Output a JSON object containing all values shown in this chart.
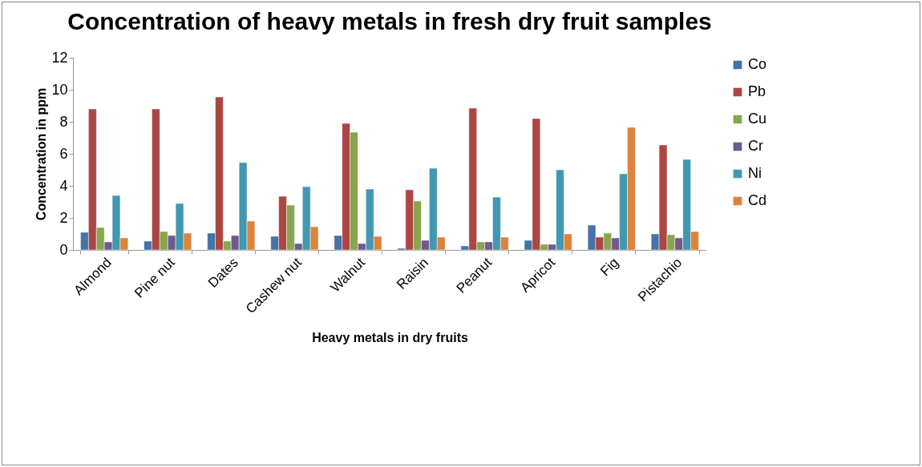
{
  "chart_data": {
    "type": "bar",
    "title": "Concentration of heavy metals in fresh dry fruit samples",
    "xlabel": "Heavy metals in dry fruits",
    "ylabel": "Concentration in ppm",
    "categories": [
      "Almond",
      "Pine nut",
      "Dates",
      "Cashew nut",
      "Walnut",
      "Raisin",
      "Peanut",
      "Apricot",
      "Fig",
      "Pistachio"
    ],
    "series": [
      {
        "name": "Co",
        "color": "#4572a7",
        "values": [
          1.1,
          0.55,
          1.05,
          0.85,
          0.9,
          0.1,
          0.25,
          0.6,
          1.55,
          1.0
        ]
      },
      {
        "name": "Pb",
        "color": "#aa4643",
        "values": [
          8.8,
          8.8,
          9.55,
          3.35,
          7.9,
          3.75,
          8.85,
          8.2,
          0.8,
          6.55
        ]
      },
      {
        "name": "Cu",
        "color": "#89a54e",
        "values": [
          1.4,
          1.15,
          0.55,
          2.8,
          7.35,
          3.05,
          0.5,
          0.35,
          1.05,
          0.95
        ]
      },
      {
        "name": "Cr",
        "color": "#71588f",
        "values": [
          0.5,
          0.9,
          0.9,
          0.4,
          0.4,
          0.6,
          0.5,
          0.35,
          0.75,
          0.75
        ]
      },
      {
        "name": "Ni",
        "color": "#4198af",
        "values": [
          3.4,
          2.9,
          5.45,
          3.95,
          3.8,
          5.1,
          3.3,
          5.0,
          4.75,
          5.65
        ]
      },
      {
        "name": "Cd",
        "color": "#db843d",
        "values": [
          0.75,
          1.05,
          1.8,
          1.45,
          0.85,
          0.8,
          0.8,
          1.0,
          7.65,
          1.15
        ]
      }
    ],
    "ylim": [
      0,
      12
    ],
    "yticks": [
      0,
      2,
      4,
      6,
      8,
      10,
      12
    ],
    "legend": "right"
  }
}
